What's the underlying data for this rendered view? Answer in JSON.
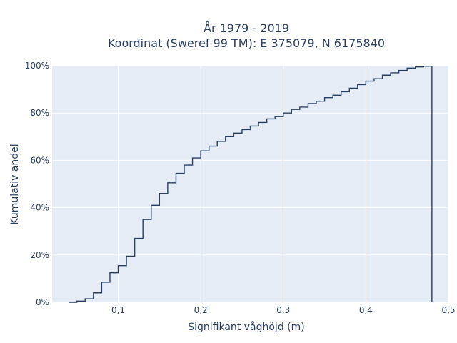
{
  "chart_data": {
    "type": "line",
    "step": true,
    "title_lines": [
      "År 1979 - 2019",
      "Koordinat (Sweref 99 TM): E 375079, N 6175840"
    ],
    "xlabel": "Signifikant våghöjd (m)",
    "ylabel": "Kumulativ andel",
    "xlim": [
      0.02,
      0.5
    ],
    "ylim": [
      0,
      1.0
    ],
    "x_ticks": [
      0.1,
      0.2,
      0.3,
      0.4,
      0.5
    ],
    "x_tick_labels": [
      "0,1",
      "0,2",
      "0,3",
      "0,4",
      "0,5"
    ],
    "y_ticks": [
      0,
      0.2,
      0.4,
      0.6,
      0.8,
      1.0
    ],
    "y_tick_labels": [
      "0%",
      "20%",
      "40%",
      "60%",
      "80%",
      "100%"
    ],
    "grid": true,
    "background": "#e5ecf6",
    "line_color": "#2a3f5f",
    "series": [
      {
        "x": [
          0.04,
          0.05,
          0.06,
          0.07,
          0.08,
          0.09,
          0.1,
          0.11,
          0.12,
          0.13,
          0.14,
          0.15,
          0.16,
          0.17,
          0.18,
          0.19,
          0.2,
          0.21,
          0.22,
          0.23,
          0.24,
          0.25,
          0.26,
          0.27,
          0.28,
          0.29,
          0.3,
          0.31,
          0.32,
          0.33,
          0.34,
          0.35,
          0.36,
          0.37,
          0.38,
          0.39,
          0.4,
          0.41,
          0.42,
          0.43,
          0.44,
          0.45,
          0.46,
          0.47,
          0.48
        ],
        "y": [
          0.0,
          0.005,
          0.015,
          0.04,
          0.085,
          0.125,
          0.155,
          0.195,
          0.27,
          0.35,
          0.41,
          0.46,
          0.505,
          0.545,
          0.58,
          0.61,
          0.64,
          0.66,
          0.68,
          0.7,
          0.715,
          0.73,
          0.745,
          0.76,
          0.775,
          0.785,
          0.8,
          0.815,
          0.825,
          0.84,
          0.85,
          0.865,
          0.875,
          0.89,
          0.905,
          0.92,
          0.935,
          0.945,
          0.96,
          0.97,
          0.98,
          0.99,
          0.995,
          0.998,
          1.0
        ]
      }
    ]
  }
}
